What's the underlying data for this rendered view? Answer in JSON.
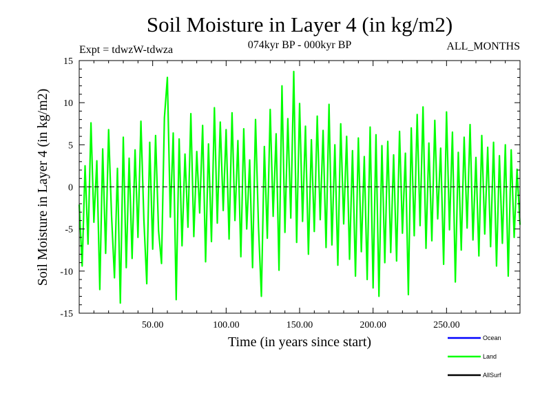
{
  "title": "Soil Moisture in Layer 4 (in kg/m2)",
  "experiment_label": "Expt = tdwzW-tdwza",
  "period_label": "074kyr BP - 000kyr BP",
  "months_label": "ALL_MONTHS",
  "colors": {
    "ocean": "#0000ff",
    "land": "#00ff00",
    "allsurf": "#000000",
    "zero_line": "#000000"
  },
  "chart_data": {
    "type": "line",
    "title": "Soil Moisture in Layer 4 (in kg/m2)",
    "xlabel": "Time (in years since start)",
    "ylabel": "Soil Moisture in Layer 4 (in kg/m2)",
    "xlim": [
      0,
      300
    ],
    "ylim": [
      -15,
      15
    ],
    "x_ticks": [
      50,
      100,
      150,
      200,
      250
    ],
    "x_tick_labels": [
      "50.00",
      "100.00",
      "150.00",
      "200.00",
      "250.00"
    ],
    "y_ticks": [
      -15,
      -10,
      -5,
      0,
      5,
      10,
      15
    ],
    "y_tick_labels": [
      "-15",
      "-10",
      "-5",
      "0",
      "5",
      "10",
      "15"
    ],
    "zero_line": "dashed",
    "grid": false,
    "legend_position": "bottom-right",
    "series": [
      {
        "name": "Ocean",
        "color": "#0000ff",
        "x": [],
        "y": []
      },
      {
        "name": "Land",
        "color": "#00ff00",
        "x": [
          0,
          2,
          4,
          6,
          8,
          10,
          12,
          14,
          16,
          18,
          20,
          22,
          24,
          26,
          28,
          30,
          32,
          34,
          36,
          38,
          40,
          42,
          44,
          46,
          48,
          50,
          52,
          54,
          56,
          58,
          60,
          62,
          64,
          66,
          68,
          70,
          72,
          74,
          76,
          78,
          80,
          82,
          84,
          86,
          88,
          90,
          92,
          94,
          96,
          98,
          100,
          102,
          104,
          106,
          108,
          110,
          112,
          114,
          116,
          118,
          120,
          122,
          124,
          126,
          128,
          130,
          132,
          134,
          136,
          138,
          140,
          142,
          144,
          146,
          148,
          150,
          152,
          154,
          156,
          158,
          160,
          162,
          164,
          166,
          168,
          170,
          172,
          174,
          176,
          178,
          180,
          182,
          184,
          186,
          188,
          190,
          192,
          194,
          196,
          198,
          200,
          202,
          204,
          206,
          208,
          210,
          212,
          214,
          216,
          218,
          220,
          222,
          224,
          226,
          228,
          230,
          232,
          234,
          236,
          238,
          240,
          242,
          244,
          246,
          248,
          250,
          252,
          254,
          256,
          258,
          260,
          262,
          264,
          266,
          268,
          270,
          272,
          274,
          276,
          278,
          280,
          282,
          284,
          286,
          288,
          290,
          292,
          294,
          296,
          298,
          300
        ],
        "y": [
          -2.1,
          -9.4,
          2.5,
          -6.8,
          7.6,
          -4.2,
          3.1,
          -12.2,
          4.5,
          -7.9,
          6.8,
          -3.3,
          -10.8,
          2.2,
          -13.8,
          5.9,
          -9.6,
          3.4,
          -8.5,
          4.4,
          -6.0,
          7.8,
          -3.9,
          -11.5,
          5.3,
          -7.4,
          6.1,
          -5.2,
          -9.1,
          8.2,
          13.0,
          -3.6,
          6.4,
          -13.4,
          5.7,
          -7.0,
          3.9,
          -4.8,
          8.7,
          -5.9,
          4.2,
          -3.1,
          7.3,
          -8.9,
          5.1,
          -6.5,
          9.4,
          -4.3,
          7.7,
          -2.8,
          6.8,
          -6.2,
          8.8,
          -4.0,
          5.5,
          -8.3,
          6.9,
          -5.0,
          3.2,
          -9.6,
          8.0,
          -4.7,
          -13.0,
          4.8,
          -6.1,
          9.2,
          -3.5,
          6.3,
          -9.9,
          12.0,
          -5.4,
          8.1,
          -3.7,
          13.7,
          -6.6,
          9.9,
          -4.1,
          7.2,
          -8.0,
          5.6,
          -5.3,
          8.4,
          -3.9,
          6.7,
          -7.2,
          9.8,
          -6.9,
          5.0,
          -9.3,
          7.5,
          -4.4,
          6.0,
          -8.6,
          4.3,
          -10.6,
          5.8,
          -7.7,
          3.6,
          -11.0,
          7.1,
          -12.0,
          6.2,
          -13.0,
          4.9,
          -9.0,
          5.4,
          -7.8,
          3.8,
          -8.8,
          6.6,
          -5.5,
          4.0,
          -12.8,
          7.0,
          -5.8,
          8.6,
          -4.6,
          9.5,
          -7.3,
          5.2,
          -6.4,
          7.9,
          -3.8,
          4.6,
          -9.2,
          8.9,
          -5.1,
          6.5,
          -11.3,
          4.1,
          -7.5,
          5.9,
          -4.9,
          7.4,
          -6.3,
          3.5,
          -8.2,
          6.1,
          -5.6,
          4.7,
          -7.1,
          5.3,
          -9.4,
          3.7,
          -6.7,
          5.0,
          -10.6,
          4.4,
          -6.0,
          2.1,
          -4.5
        ]
      },
      {
        "name": "AllSurf",
        "color": "#000000",
        "x": [],
        "y": []
      }
    ]
  },
  "legend": [
    {
      "label": "Ocean",
      "color": "#0000ff"
    },
    {
      "label": "Land",
      "color": "#00ff00"
    },
    {
      "label": "AllSurf",
      "color": "#000000"
    }
  ]
}
